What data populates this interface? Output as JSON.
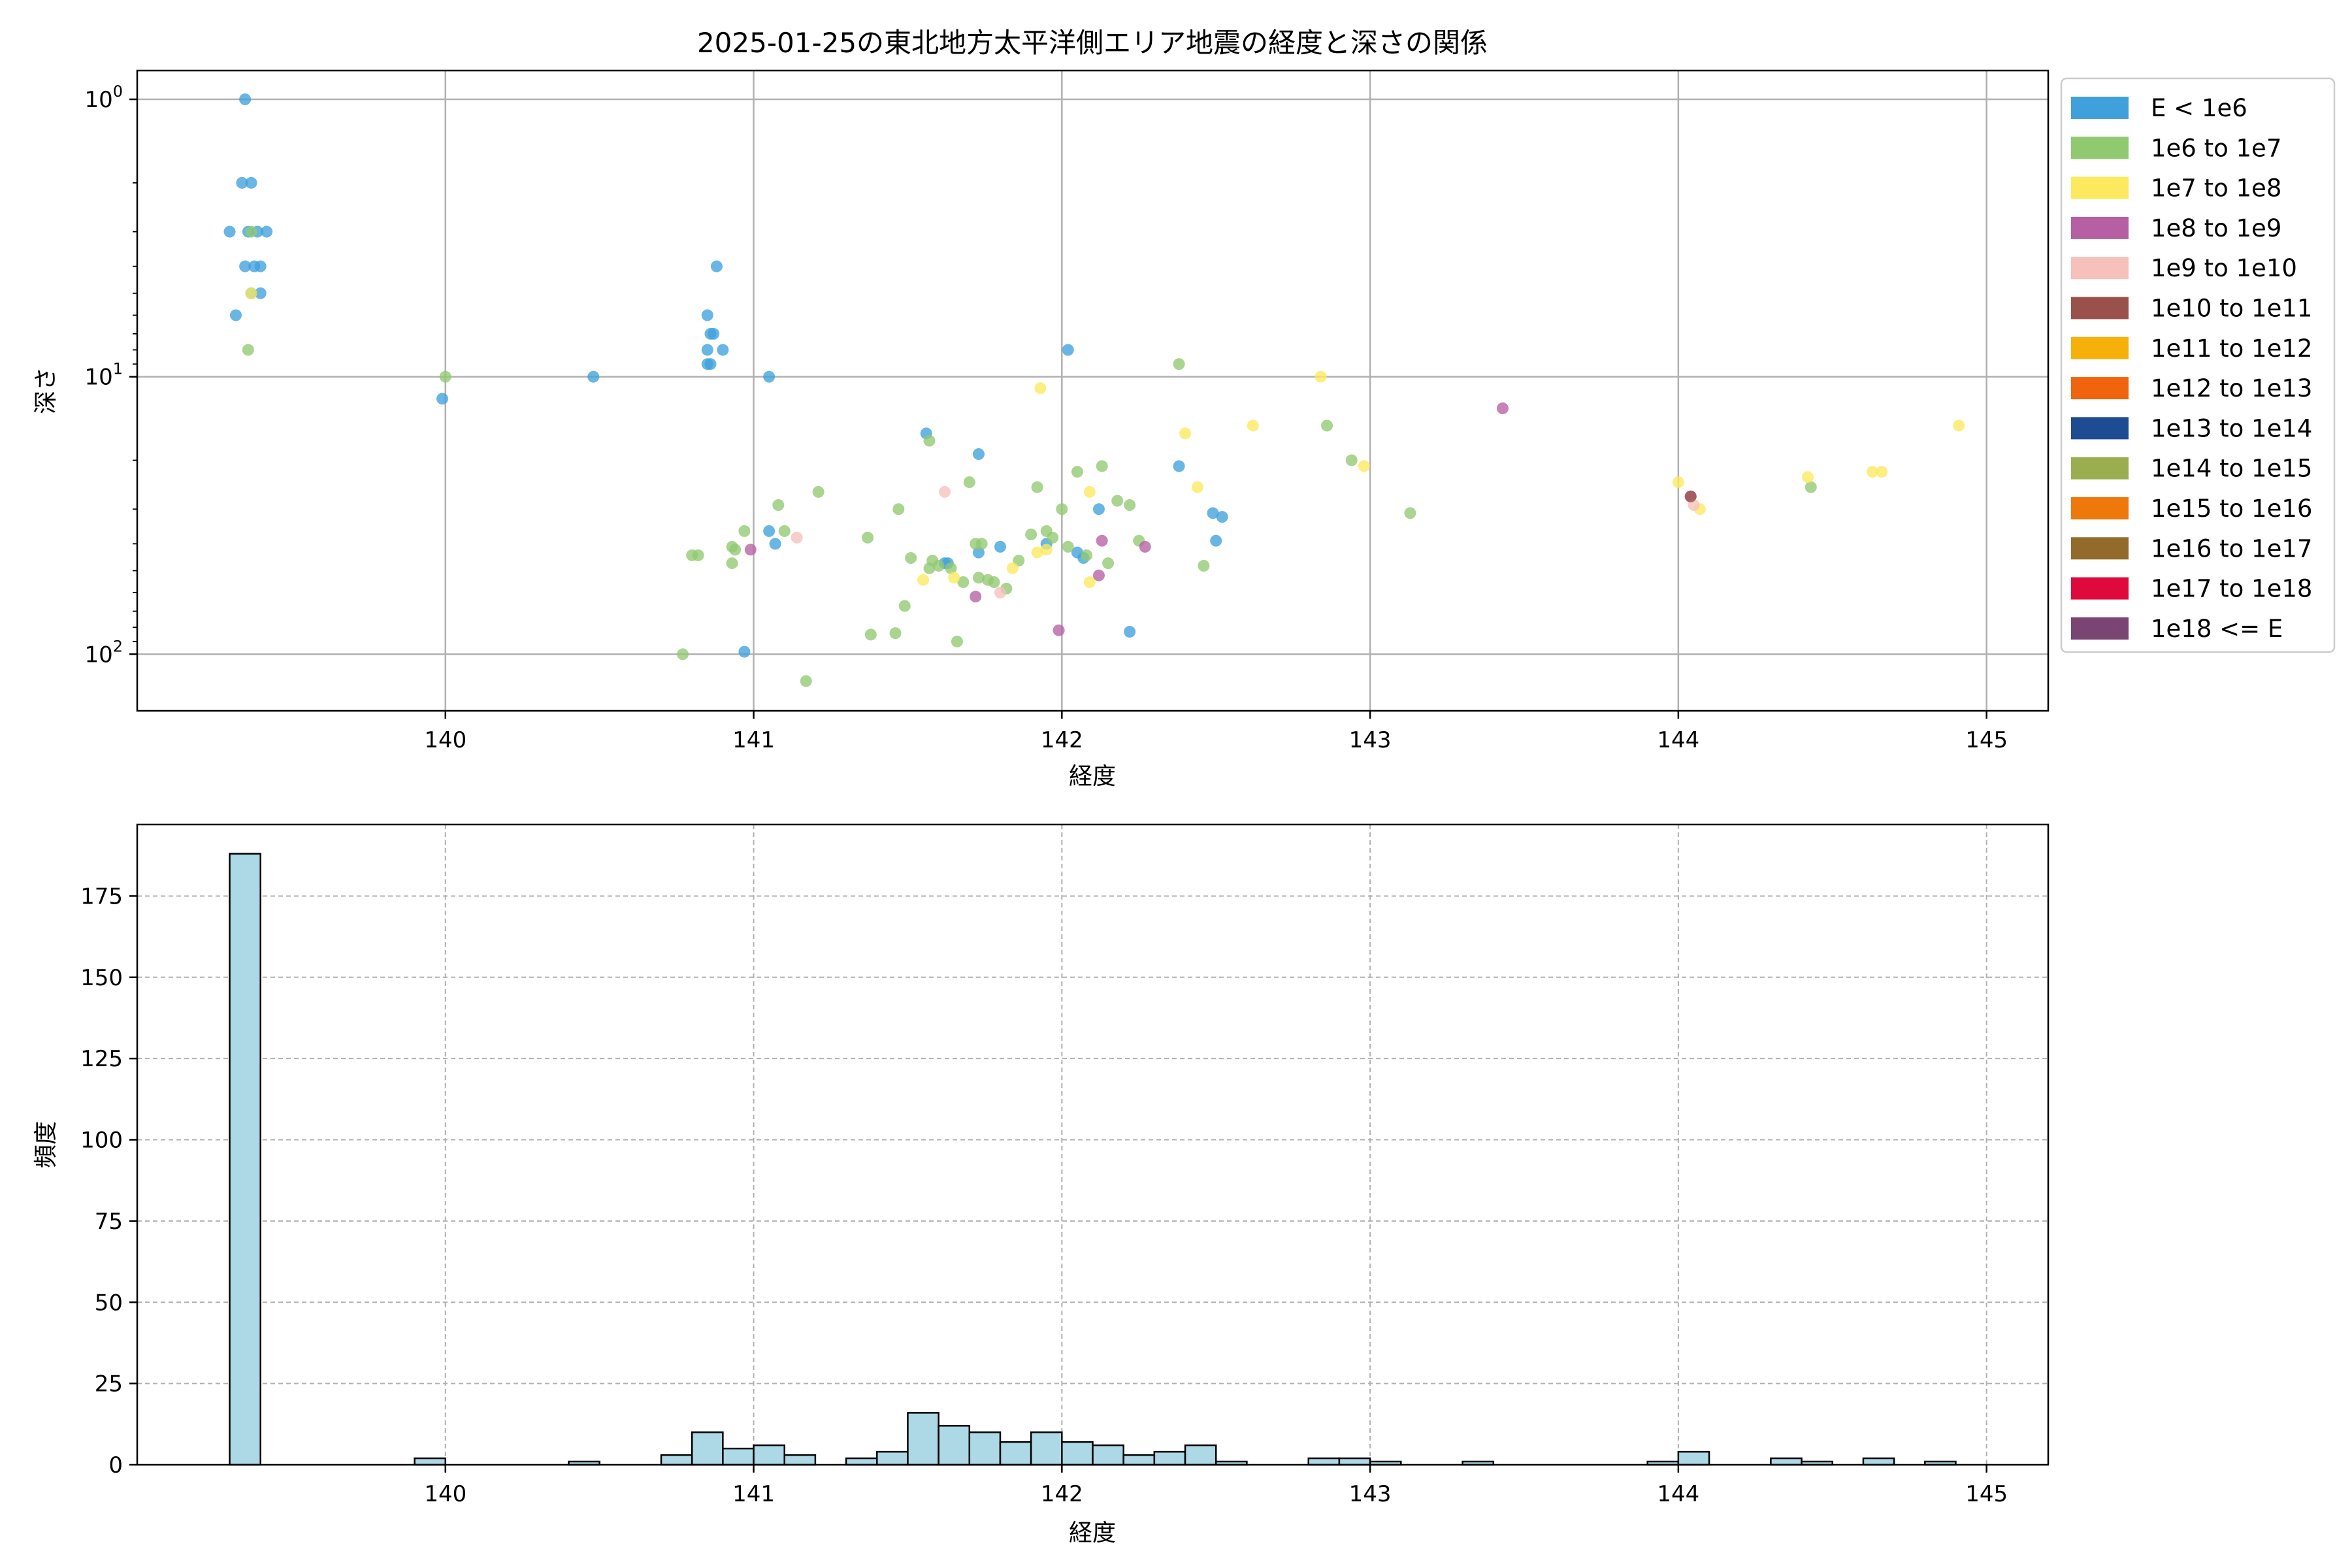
{
  "chart_data": [
    {
      "type": "scatter",
      "title": "2025-01-25の東北地方太平洋側エリア地震の経度と深さの関係",
      "xlabel": "経度",
      "ylabel": "深さ",
      "xlim": [
        139.0,
        145.2
      ],
      "ylim": [
        1.0,
        160
      ],
      "yscale": "log",
      "yinverted": true,
      "xticks": [
        "140",
        "141",
        "142",
        "143",
        "144",
        "145"
      ],
      "yticks": [
        "10^0",
        "10^1",
        "10^2"
      ],
      "grid": true,
      "legend_position": "outside-right",
      "legend": [
        {
          "label": "E < 1e6",
          "color": "#3fa0dc"
        },
        {
          "label": "1e6 to 1e7",
          "color": "#91c971"
        },
        {
          "label": "1e7 to 1e8",
          "color": "#fde95d"
        },
        {
          "label": "1e8 to 1e9",
          "color": "#b660a3"
        },
        {
          "label": "1e9 to 1e10",
          "color": "#f6c0bb"
        },
        {
          "label": "1e10 to 1e11",
          "color": "#9b514b"
        },
        {
          "label": "1e11 to 1e12",
          "color": "#f7b00a"
        },
        {
          "label": "1e12 to 1e13",
          "color": "#f0640d"
        },
        {
          "label": "1e13 to 1e14",
          "color": "#1e4c92"
        },
        {
          "label": "1e14 to 1e15",
          "color": "#9bae4f"
        },
        {
          "label": "1e15 to 1e16",
          "color": "#ef780a"
        },
        {
          "label": "1e16 to 1e17",
          "color": "#926a2a"
        },
        {
          "label": "1e17 to 1e18",
          "color": "#de0a3b"
        },
        {
          "label": "1e18 <= E",
          "color": "#7a4473"
        }
      ],
      "series": [
        {
          "name": "E < 1e6",
          "points": [
            [
              139.35,
              1.0
            ],
            [
              139.34,
              2.0
            ],
            [
              139.37,
              2.0
            ],
            [
              139.36,
              3.0
            ],
            [
              139.3,
              3.0
            ],
            [
              139.39,
              3.0
            ],
            [
              139.42,
              3.0
            ],
            [
              139.35,
              4.0
            ],
            [
              139.38,
              4.0
            ],
            [
              139.4,
              4.0
            ],
            [
              139.37,
              5.0
            ],
            [
              139.4,
              5.0
            ],
            [
              139.32,
              6.0
            ],
            [
              140.88,
              4.0
            ],
            [
              140.85,
              6.0
            ],
            [
              140.86,
              7.0
            ],
            [
              140.87,
              7.0
            ],
            [
              140.85,
              8.0
            ],
            [
              140.9,
              8.0
            ],
            [
              140.85,
              9.0
            ],
            [
              140.86,
              9.0
            ],
            [
              139.99,
              12.0
            ],
            [
              140.48,
              10.0
            ],
            [
              141.05,
              10.0
            ],
            [
              142.02,
              8.0
            ],
            [
              141.56,
              16.0
            ],
            [
              141.73,
              19.0
            ],
            [
              142.38,
              21.0
            ],
            [
              142.52,
              32.0
            ],
            [
              142.49,
              31.0
            ],
            [
              142.5,
              39.0
            ],
            [
              142.12,
              30.0
            ],
            [
              142.05,
              43.0
            ],
            [
              142.07,
              45.0
            ],
            [
              141.62,
              47.0
            ],
            [
              141.63,
              47.0
            ],
            [
              141.73,
              43.0
            ],
            [
              141.8,
              41.0
            ],
            [
              141.05,
              36.0
            ],
            [
              141.07,
              40.0
            ],
            [
              140.97,
              98.0
            ],
            [
              142.22,
              83.0
            ],
            [
              141.95,
              40.0
            ]
          ]
        },
        {
          "name": "1e6 to 1e7",
          "points": [
            [
              139.36,
              8.0
            ],
            [
              139.37,
              3.0
            ],
            [
              140.0,
              10.0
            ],
            [
              142.38,
              9.0
            ],
            [
              142.86,
              15.0
            ],
            [
              142.94,
              20.0
            ],
            [
              143.13,
              31.0
            ],
            [
              144.43,
              25.0
            ],
            [
              141.08,
              29.0
            ],
            [
              141.1,
              36.0
            ],
            [
              141.21,
              26.0
            ],
            [
              141.37,
              38.0
            ],
            [
              141.47,
              30.0
            ],
            [
              141.51,
              45.0
            ],
            [
              141.57,
              17.0
            ],
            [
              141.58,
              46.0
            ],
            [
              141.57,
              49.0
            ],
            [
              141.6,
              48.0
            ],
            [
              141.64,
              49.0
            ],
            [
              141.68,
              55.0
            ],
            [
              141.7,
              24.0
            ],
            [
              141.72,
              40.0
            ],
            [
              141.73,
              53.0
            ],
            [
              141.74,
              40.0
            ],
            [
              141.76,
              54.0
            ],
            [
              141.78,
              55.0
            ],
            [
              141.82,
              58.0
            ],
            [
              141.9,
              37.0
            ],
            [
              141.92,
              25.0
            ],
            [
              141.95,
              36.0
            ],
            [
              141.97,
              38.0
            ],
            [
              142.0,
              30.0
            ],
            [
              142.02,
              41.0
            ],
            [
              142.05,
              22.0
            ],
            [
              142.08,
              44.0
            ],
            [
              142.13,
              21.0
            ],
            [
              142.15,
              47.0
            ],
            [
              142.18,
              28.0
            ],
            [
              142.22,
              29.0
            ],
            [
              142.25,
              39.0
            ],
            [
              142.46,
              48.0
            ],
            [
              141.38,
              85.0
            ],
            [
              141.46,
              84.0
            ],
            [
              141.49,
              67.0
            ],
            [
              141.66,
              90.0
            ],
            [
              141.17,
              125.0
            ],
            [
              140.77,
              100.0
            ],
            [
              140.8,
              44.0
            ],
            [
              140.82,
              44.0
            ],
            [
              140.94,
              42.0
            ],
            [
              140.97,
              36.0
            ],
            [
              140.93,
              47.0
            ],
            [
              140.93,
              41.0
            ],
            [
              141.86,
              46.0
            ]
          ]
        },
        {
          "name": "1e7 to 1e8",
          "points": [
            [
              139.37,
              5.0
            ],
            [
              141.93,
              11.0
            ],
            [
              142.4,
              16.0
            ],
            [
              142.62,
              15.0
            ],
            [
              142.84,
              10.0
            ],
            [
              142.98,
              21.0
            ],
            [
              144.0,
              24.0
            ],
            [
              144.42,
              23.0
            ],
            [
              144.63,
              22.0
            ],
            [
              144.66,
              22.0
            ],
            [
              144.91,
              15.0
            ],
            [
              142.09,
              26.0
            ],
            [
              142.44,
              25.0
            ],
            [
              141.95,
              42.0
            ],
            [
              141.92,
              43.0
            ],
            [
              141.84,
              49.0
            ],
            [
              141.65,
              53.0
            ],
            [
              141.55,
              54.0
            ],
            [
              142.09,
              55.0
            ],
            [
              144.07,
              30.0
            ]
          ]
        },
        {
          "name": "1e8 to 1e9",
          "points": [
            [
              143.43,
              13.0
            ],
            [
              140.99,
              42.0
            ],
            [
              142.13,
              39.0
            ],
            [
              142.27,
              41.0
            ],
            [
              142.12,
              52.0
            ],
            [
              141.72,
              62.0
            ],
            [
              141.99,
              82.0
            ],
            [
              144.04,
              27.0
            ]
          ]
        },
        {
          "name": "1e9 to 1e10",
          "points": [
            [
              141.62,
              26.0
            ],
            [
              141.14,
              38.0
            ],
            [
              144.05,
              29.0
            ],
            [
              141.8,
              60.0
            ]
          ]
        },
        {
          "name": "1e10 to 1e11",
          "points": [
            [
              144.04,
              27.0
            ]
          ]
        }
      ]
    },
    {
      "type": "bar",
      "title": "",
      "xlabel": "経度",
      "ylabel": "頻度",
      "xlim": [
        139.0,
        145.2
      ],
      "ylim": [
        0,
        197
      ],
      "xticks": [
        "140",
        "141",
        "142",
        "143",
        "144",
        "145"
      ],
      "yticks": [
        "0",
        "25",
        "50",
        "75",
        "100",
        "125",
        "150",
        "175"
      ],
      "grid": true,
      "bar_color": "#add8e6",
      "bin_width": 0.1,
      "bins": [
        [
          139.3,
          188
        ],
        [
          139.9,
          2
        ],
        [
          140.4,
          1
        ],
        [
          140.7,
          3
        ],
        [
          140.8,
          10
        ],
        [
          140.9,
          5
        ],
        [
          141.0,
          6
        ],
        [
          141.1,
          3
        ],
        [
          141.3,
          2
        ],
        [
          141.4,
          4
        ],
        [
          141.5,
          16
        ],
        [
          141.6,
          12
        ],
        [
          141.7,
          10
        ],
        [
          141.8,
          7
        ],
        [
          141.9,
          10
        ],
        [
          142.0,
          7
        ],
        [
          142.1,
          6
        ],
        [
          142.2,
          3
        ],
        [
          142.3,
          4
        ],
        [
          142.4,
          6
        ],
        [
          142.5,
          1
        ],
        [
          142.8,
          2
        ],
        [
          142.9,
          2
        ],
        [
          143.0,
          1
        ],
        [
          143.3,
          1
        ],
        [
          143.9,
          1
        ],
        [
          144.0,
          4
        ],
        [
          144.3,
          2
        ],
        [
          144.4,
          1
        ],
        [
          144.6,
          2
        ],
        [
          144.8,
          1
        ]
      ]
    }
  ]
}
